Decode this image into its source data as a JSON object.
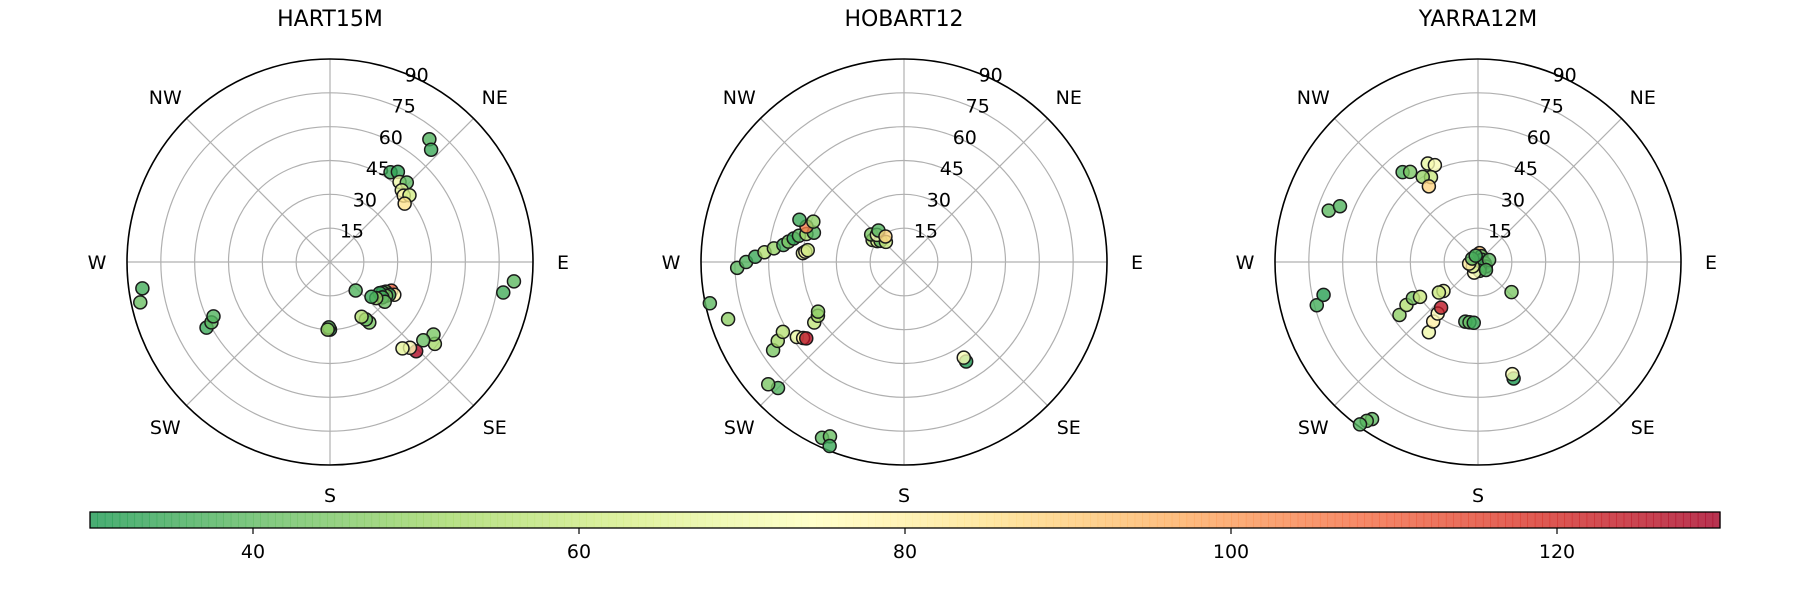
{
  "chart_data": [
    {
      "type": "scatter",
      "projection": "polar-skyplot",
      "title": "HART15M",
      "radial_ticks": [
        "15",
        "30",
        "45",
        "60",
        "75",
        "90"
      ],
      "r_range": [
        0,
        90
      ],
      "direction_labels": [
        "NE",
        "E",
        "SE",
        "S",
        "SW",
        "W",
        "NW"
      ],
      "grid": true,
      "points": [
        {
          "az": 34,
          "el": 48,
          "value": 35
        },
        {
          "az": 37,
          "el": 50,
          "value": 33
        },
        {
          "az": 41,
          "el": 47,
          "value": 70
        },
        {
          "az": 44,
          "el": 49,
          "value": 40
        },
        {
          "az": 45,
          "el": 45,
          "value": 66
        },
        {
          "az": 48,
          "el": 44,
          "value": 78
        },
        {
          "az": 50,
          "el": 46,
          "value": 62
        },
        {
          "az": 52,
          "el": 42,
          "value": 85
        },
        {
          "az": 39,
          "el": 70,
          "value": 38
        },
        {
          "az": 42,
          "el": 67,
          "value": 35
        },
        {
          "az": 96,
          "el": 82,
          "value": 40
        },
        {
          "az": 100,
          "el": 78,
          "value": 36
        },
        {
          "az": 128,
          "el": 59,
          "value": 52
        },
        {
          "az": 125,
          "el": 56,
          "value": 45
        },
        {
          "az": 130,
          "el": 54,
          "value": 42
        },
        {
          "az": 136,
          "el": 55,
          "value": 128
        },
        {
          "az": 137,
          "el": 52,
          "value": 76
        },
        {
          "az": 140,
          "el": 50,
          "value": 67
        },
        {
          "az": 115,
          "el": 30,
          "value": 110
        },
        {
          "az": 117,
          "el": 32,
          "value": 78
        },
        {
          "az": 118,
          "el": 28,
          "value": 40
        },
        {
          "az": 119,
          "el": 30,
          "value": 34
        },
        {
          "az": 120,
          "el": 27,
          "value": 38
        },
        {
          "az": 121,
          "el": 29,
          "value": 45
        },
        {
          "az": 122,
          "el": 26,
          "value": 33
        },
        {
          "az": 124,
          "el": 28,
          "value": 36
        },
        {
          "az": 126,
          "el": 30,
          "value": 42
        },
        {
          "az": 128,
          "el": 26,
          "value": 50
        },
        {
          "az": 130,
          "el": 24,
          "value": 35
        },
        {
          "az": 147,
          "el": 32,
          "value": 45
        },
        {
          "az": 148,
          "el": 30,
          "value": 42
        },
        {
          "az": 150,
          "el": 28,
          "value": 55
        },
        {
          "az": 138,
          "el": 17,
          "value": 38
        },
        {
          "az": 180,
          "el": 30,
          "value": 30
        },
        {
          "az": 181,
          "el": 29,
          "value": 40
        },
        {
          "az": 182,
          "el": 30,
          "value": 50
        },
        {
          "az": 242,
          "el": 62,
          "value": 35
        },
        {
          "az": 243,
          "el": 59,
          "value": 40
        },
        {
          "az": 245,
          "el": 57,
          "value": 38
        },
        {
          "az": 258,
          "el": 86,
          "value": 42
        },
        {
          "az": 262,
          "el": 84,
          "value": 36
        }
      ]
    },
    {
      "type": "scatter",
      "projection": "polar-skyplot",
      "title": "HOBART12",
      "radial_ticks": [
        "15",
        "30",
        "45",
        "60",
        "75",
        "90"
      ],
      "r_range": [
        0,
        90
      ],
      "direction_labels": [
        "NE",
        "E",
        "SE",
        "S",
        "SW",
        "W",
        "NW"
      ],
      "grid": true,
      "points": [
        {
          "az": 305,
          "el": 17,
          "value": 55
        },
        {
          "az": 308,
          "el": 15,
          "value": 65
        },
        {
          "az": 310,
          "el": 19,
          "value": 45
        },
        {
          "az": 312,
          "el": 14,
          "value": 40
        },
        {
          "az": 315,
          "el": 17,
          "value": 72
        },
        {
          "az": 318,
          "el": 12,
          "value": 60
        },
        {
          "az": 321,
          "el": 18,
          "value": 38
        },
        {
          "az": 324,
          "el": 14,
          "value": 88
        },
        {
          "az": 268,
          "el": 74,
          "value": 40
        },
        {
          "az": 270,
          "el": 70,
          "value": 38
        },
        {
          "az": 272,
          "el": 66,
          "value": 35
        },
        {
          "az": 274,
          "el": 62,
          "value": 55
        },
        {
          "az": 276,
          "el": 58,
          "value": 50
        },
        {
          "az": 278,
          "el": 54,
          "value": 36
        },
        {
          "az": 280,
          "el": 52,
          "value": 45
        },
        {
          "az": 282,
          "el": 50,
          "value": 33
        },
        {
          "az": 284,
          "el": 48,
          "value": 40
        },
        {
          "az": 286,
          "el": 45,
          "value": 52
        },
        {
          "az": 288,
          "el": 42,
          "value": 38
        },
        {
          "az": 290,
          "el": 46,
          "value": 105
        },
        {
          "az": 292,
          "el": 50,
          "value": 35
        },
        {
          "az": 294,
          "el": 44,
          "value": 48
        },
        {
          "az": 275,
          "el": 45,
          "value": 66
        },
        {
          "az": 276,
          "el": 44,
          "value": 78
        },
        {
          "az": 277,
          "el": 43,
          "value": 60
        },
        {
          "az": 252,
          "el": 82,
          "value": 48
        },
        {
          "az": 258,
          "el": 88,
          "value": 40
        },
        {
          "az": 236,
          "el": 70,
          "value": 45
        },
        {
          "az": 238,
          "el": 66,
          "value": 52
        },
        {
          "az": 240,
          "el": 62,
          "value": 56
        },
        {
          "az": 235,
          "el": 58,
          "value": 68
        },
        {
          "az": 233,
          "el": 56,
          "value": 80
        },
        {
          "az": 232,
          "el": 55,
          "value": 126
        },
        {
          "az": 236,
          "el": 48,
          "value": 58
        },
        {
          "az": 238,
          "el": 45,
          "value": 52
        },
        {
          "az": 240,
          "el": 44,
          "value": 48
        },
        {
          "az": 225,
          "el": 79,
          "value": 38
        },
        {
          "az": 228,
          "el": 81,
          "value": 45
        },
        {
          "az": 205,
          "el": 86,
          "value": 40
        },
        {
          "az": 203,
          "el": 84,
          "value": 42
        },
        {
          "az": 202,
          "el": 88,
          "value": 35
        },
        {
          "az": 148,
          "el": 52,
          "value": 30
        },
        {
          "az": 148,
          "el": 50,
          "value": 72
        }
      ]
    },
    {
      "type": "scatter",
      "projection": "polar-skyplot",
      "title": "YARRA12M",
      "radial_ticks": [
        "15",
        "30",
        "45",
        "60",
        "75",
        "90"
      ],
      "r_range": [
        0,
        90
      ],
      "direction_labels": [
        "NE",
        "E",
        "SE",
        "S",
        "SW",
        "W",
        "NW"
      ],
      "grid": true,
      "points": [
        {
          "az": 320,
          "el": 52,
          "value": 38
        },
        {
          "az": 323,
          "el": 50,
          "value": 45
        },
        {
          "az": 333,
          "el": 49,
          "value": 68
        },
        {
          "az": 336,
          "el": 47,
          "value": 72
        },
        {
          "az": 331,
          "el": 43,
          "value": 60
        },
        {
          "az": 327,
          "el": 45,
          "value": 50
        },
        {
          "az": 327,
          "el": 40,
          "value": 88
        },
        {
          "az": 289,
          "el": 70,
          "value": 40
        },
        {
          "az": 292,
          "el": 66,
          "value": 38
        },
        {
          "az": 255,
          "el": 74,
          "value": 36
        },
        {
          "az": 258,
          "el": 70,
          "value": 32
        },
        {
          "az": 236,
          "el": 42,
          "value": 48
        },
        {
          "az": 239,
          "el": 37,
          "value": 55
        },
        {
          "az": 241,
          "el": 33,
          "value": 45
        },
        {
          "az": 239,
          "el": 30,
          "value": 60
        },
        {
          "az": 230,
          "el": 20,
          "value": 66
        },
        {
          "az": 232,
          "el": 22,
          "value": 60
        },
        {
          "az": 215,
          "el": 38,
          "value": 70
        },
        {
          "az": 217,
          "el": 33,
          "value": 80
        },
        {
          "az": 218,
          "el": 29,
          "value": 75
        },
        {
          "az": 219,
          "el": 26,
          "value": 125
        },
        {
          "az": 192,
          "el": 27,
          "value": 38
        },
        {
          "az": 188,
          "el": 27,
          "value": 42
        },
        {
          "az": 184,
          "el": 27,
          "value": 35
        },
        {
          "az": 214,
          "el": 84,
          "value": 40
        },
        {
          "az": 215,
          "el": 86,
          "value": 42
        },
        {
          "az": 216,
          "el": 89,
          "value": 38
        },
        {
          "az": 163,
          "el": 54,
          "value": 30
        },
        {
          "az": 163,
          "el": 52,
          "value": 72
        },
        {
          "az": 132,
          "el": 20,
          "value": 45
        },
        {
          "az": 10,
          "el": 4,
          "value": 92
        },
        {
          "az": 30,
          "el": 3,
          "value": 40
        },
        {
          "az": 60,
          "el": 2,
          "value": 35
        },
        {
          "az": 100,
          "el": 3,
          "value": 42
        },
        {
          "az": 120,
          "el": 4,
          "value": 38
        },
        {
          "az": 150,
          "el": 2,
          "value": 36
        },
        {
          "az": 170,
          "el": 4,
          "value": 40
        },
        {
          "az": 200,
          "el": 5,
          "value": 75
        },
        {
          "az": 230,
          "el": 3,
          "value": 65
        },
        {
          "az": 260,
          "el": 4,
          "value": 82
        },
        {
          "az": 300,
          "el": 3,
          "value": 40
        },
        {
          "az": 340,
          "el": 3,
          "value": 36
        },
        {
          "az": 80,
          "el": 5,
          "value": 40
        },
        {
          "az": 135,
          "el": 5,
          "value": 38
        }
      ]
    }
  ],
  "colorbar": {
    "range": [
      30,
      130
    ],
    "ticks": [
      "40",
      "60",
      "80",
      "100",
      "120"
    ],
    "colormap": [
      "#1a9850",
      "#66bd63",
      "#a6d96a",
      "#d9ef8b",
      "#ffffbf",
      "#fee08b",
      "#fdae61",
      "#f46d43",
      "#d73027",
      "#a50026"
    ],
    "alpha": 0.8,
    "orientation": "horizontal"
  }
}
